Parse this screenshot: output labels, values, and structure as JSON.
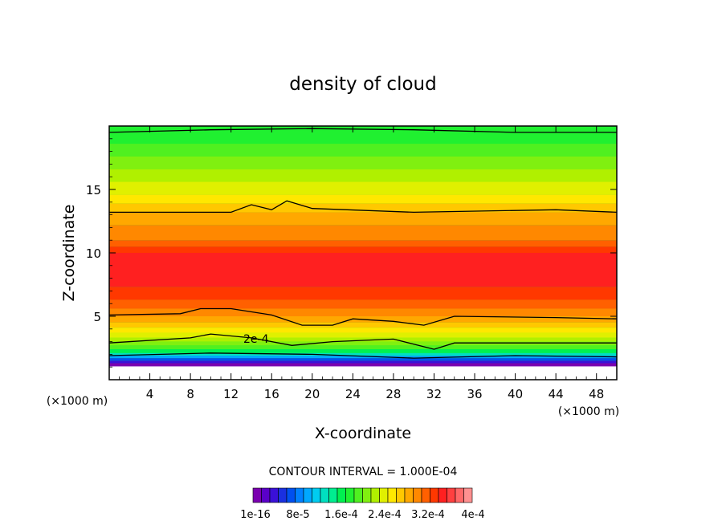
{
  "chart_data": {
    "type": "heatmap",
    "title": "density of cloud",
    "xlabel": "X-coordinate",
    "ylabel": "Z-coordinate",
    "x_unit": "(×1000 m)",
    "xlim": [
      0,
      50
    ],
    "ylim": [
      0,
      20
    ],
    "x_ticks": [
      4,
      8,
      12,
      16,
      20,
      24,
      28,
      32,
      36,
      40,
      44,
      48
    ],
    "y_ticks": [
      5,
      10,
      15
    ],
    "contour_interval_text": "CONTOUR INTERVAL = 1.000E-04",
    "contour_label": "2e-4",
    "colorbar": {
      "labels": [
        "1e-16",
        "8e-5",
        "1.6e-4",
        "2.4e-4",
        "3.2e-4",
        "4e-4"
      ],
      "colors": [
        "#7a00b0",
        "#5a00c8",
        "#3a10d8",
        "#1a30e0",
        "#0050f0",
        "#0080ff",
        "#00a8ff",
        "#00ccf0",
        "#00e0c0",
        "#00ee90",
        "#00f050",
        "#20f030",
        "#50f020",
        "#80f010",
        "#b0f000",
        "#e0f000",
        "#ffe800",
        "#ffc800",
        "#ffa800",
        "#ff8800",
        "#ff6000",
        "#ff3800",
        "#ff2020",
        "#ff4040",
        "#ff6868",
        "#ff9090"
      ]
    },
    "levels_z": [
      {
        "z": 19.6,
        "color": "#20f030"
      },
      {
        "z": 18.6,
        "color": "#50f020"
      },
      {
        "z": 17.6,
        "color": "#80f010"
      },
      {
        "z": 16.6,
        "color": "#b0f000"
      },
      {
        "z": 15.6,
        "color": "#e0f000"
      },
      {
        "z": 14.6,
        "color": "#ffe800"
      },
      {
        "z": 13.9,
        "color": "#ffc800"
      },
      {
        "z": 13.2,
        "color": "#ffa800"
      },
      {
        "z": 12.2,
        "color": "#ff8800"
      },
      {
        "z": 11.0,
        "color": "#ff6000"
      },
      {
        "z": 10.5,
        "color": "#ff3800"
      },
      {
        "z": 10.0,
        "color": "#ff2020"
      },
      {
        "z": 7.3,
        "color": "#ff3800"
      },
      {
        "z": 6.3,
        "color": "#ff6000"
      },
      {
        "z": 5.6,
        "color": "#ff8800"
      },
      {
        "z": 5.0,
        "color": "#ffa800"
      },
      {
        "z": 4.5,
        "color": "#ffc800"
      },
      {
        "z": 4.1,
        "color": "#ffe800"
      },
      {
        "z": 3.7,
        "color": "#e0f000"
      },
      {
        "z": 3.3,
        "color": "#b0f000"
      },
      {
        "z": 3.0,
        "color": "#80f010"
      },
      {
        "z": 2.7,
        "color": "#50f020"
      },
      {
        "z": 2.4,
        "color": "#00f050"
      },
      {
        "z": 2.1,
        "color": "#00e0c0"
      },
      {
        "z": 1.9,
        "color": "#00a8ff"
      },
      {
        "z": 1.7,
        "color": "#0050f0"
      },
      {
        "z": 1.5,
        "color": "#3a10d8"
      },
      {
        "z": 1.3,
        "color": "#7a00b0"
      }
    ],
    "contour_lines_z": [
      [
        {
          "x": 0,
          "z": 19.5
        },
        {
          "x": 10,
          "z": 19.7
        },
        {
          "x": 20,
          "z": 19.8
        },
        {
          "x": 30,
          "z": 19.7
        },
        {
          "x": 40,
          "z": 19.5
        },
        {
          "x": 50,
          "z": 19.5
        }
      ],
      [
        {
          "x": 0,
          "z": 13.2
        },
        {
          "x": 12,
          "z": 13.2
        },
        {
          "x": 14,
          "z": 13.8
        },
        {
          "x": 16,
          "z": 13.4
        },
        {
          "x": 17.5,
          "z": 14.1
        },
        {
          "x": 20,
          "z": 13.5
        },
        {
          "x": 30,
          "z": 13.2
        },
        {
          "x": 44,
          "z": 13.4
        },
        {
          "x": 50,
          "z": 13.2
        }
      ],
      [
        {
          "x": 0,
          "z": 5.1
        },
        {
          "x": 7,
          "z": 5.2
        },
        {
          "x": 9,
          "z": 5.6
        },
        {
          "x": 12,
          "z": 5.6
        },
        {
          "x": 16,
          "z": 5.1
        },
        {
          "x": 19,
          "z": 4.3
        },
        {
          "x": 22,
          "z": 4.3
        },
        {
          "x": 24,
          "z": 4.8
        },
        {
          "x": 28,
          "z": 4.6
        },
        {
          "x": 31,
          "z": 4.3
        },
        {
          "x": 34,
          "z": 5.0
        },
        {
          "x": 44,
          "z": 4.9
        },
        {
          "x": 50,
          "z": 4.8
        }
      ],
      [
        {
          "x": 0,
          "z": 2.9
        },
        {
          "x": 8,
          "z": 3.3
        },
        {
          "x": 10,
          "z": 3.6
        },
        {
          "x": 14,
          "z": 3.3
        },
        {
          "x": 18,
          "z": 2.7
        },
        {
          "x": 22,
          "z": 3.0
        },
        {
          "x": 28,
          "z": 3.2
        },
        {
          "x": 32,
          "z": 2.4
        },
        {
          "x": 34,
          "z": 2.9
        },
        {
          "x": 50,
          "z": 2.9
        }
      ],
      [
        {
          "x": 0,
          "z": 1.9
        },
        {
          "x": 10,
          "z": 2.1
        },
        {
          "x": 20,
          "z": 2.0
        },
        {
          "x": 30,
          "z": 1.7
        },
        {
          "x": 40,
          "z": 1.9
        },
        {
          "x": 50,
          "z": 1.8
        }
      ]
    ]
  }
}
